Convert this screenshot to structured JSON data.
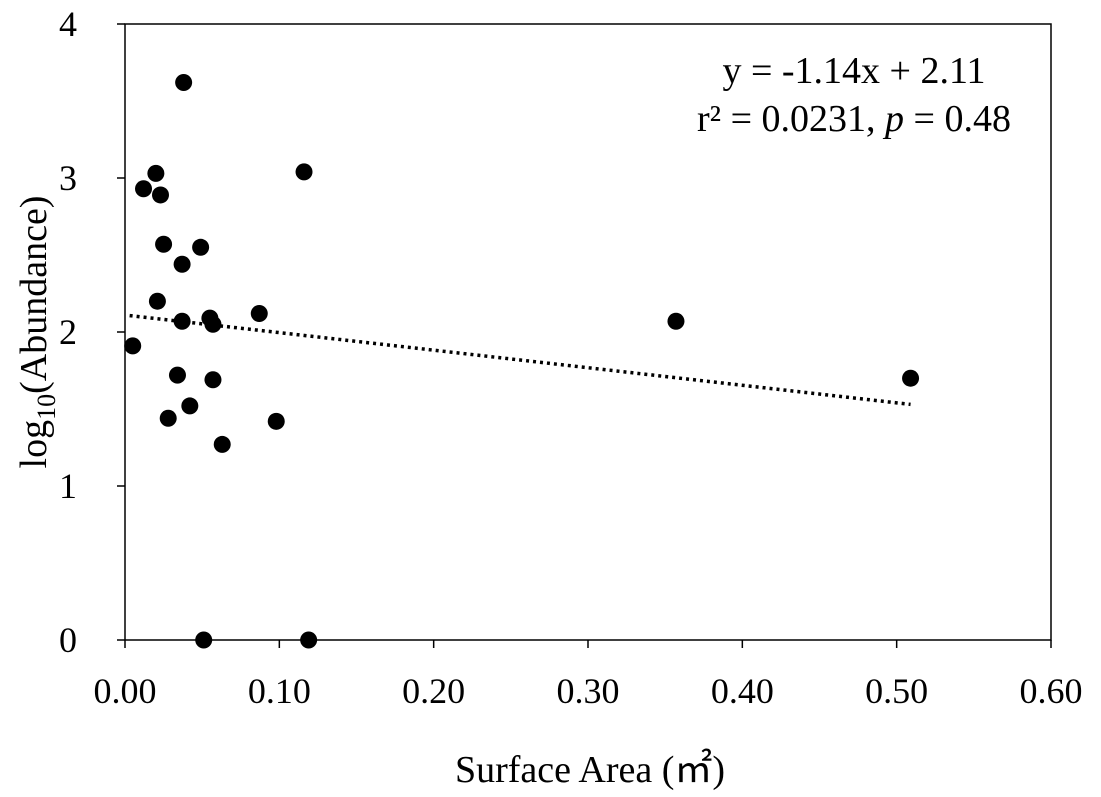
{
  "chart_data": {
    "type": "scatter",
    "title": "",
    "xlabel": "Surface Area (㎡)",
    "ylabel_main": "log",
    "ylabel_sub": "10",
    "ylabel_rest": "(Abundance)",
    "xlim": [
      0,
      0.6
    ],
    "ylim": [
      0,
      4
    ],
    "xticks": [
      "0.00",
      "0.10",
      "0.20",
      "0.30",
      "0.40",
      "0.50",
      "0.60"
    ],
    "xtick_values": [
      0,
      0.1,
      0.2,
      0.3,
      0.4,
      0.5,
      0.6
    ],
    "yticks": [
      "0",
      "1",
      "2",
      "3",
      "4"
    ],
    "ytick_values": [
      0,
      1,
      2,
      3,
      4
    ],
    "grid": false,
    "marker_color": "#000000",
    "points": [
      {
        "x": 0.005,
        "y": 1.91
      },
      {
        "x": 0.012,
        "y": 2.93
      },
      {
        "x": 0.02,
        "y": 3.03
      },
      {
        "x": 0.021,
        "y": 2.2
      },
      {
        "x": 0.023,
        "y": 2.89
      },
      {
        "x": 0.025,
        "y": 2.57
      },
      {
        "x": 0.028,
        "y": 1.44
      },
      {
        "x": 0.034,
        "y": 1.72
      },
      {
        "x": 0.037,
        "y": 2.07
      },
      {
        "x": 0.037,
        "y": 2.44
      },
      {
        "x": 0.038,
        "y": 3.62
      },
      {
        "x": 0.042,
        "y": 1.52
      },
      {
        "x": 0.049,
        "y": 2.55
      },
      {
        "x": 0.051,
        "y": 0.0
      },
      {
        "x": 0.055,
        "y": 2.09
      },
      {
        "x": 0.057,
        "y": 2.05
      },
      {
        "x": 0.057,
        "y": 1.69
      },
      {
        "x": 0.063,
        "y": 1.27
      },
      {
        "x": 0.087,
        "y": 2.12
      },
      {
        "x": 0.098,
        "y": 1.42
      },
      {
        "x": 0.116,
        "y": 3.04
      },
      {
        "x": 0.119,
        "y": 0.0
      },
      {
        "x": 0.357,
        "y": 2.07
      },
      {
        "x": 0.509,
        "y": 1.7
      }
    ],
    "trendline": {
      "style": "dotted",
      "slope": -1.14,
      "intercept": 2.11,
      "x_start": 0.003,
      "x_end": 0.509
    },
    "annotation": {
      "equation": "y = -1.14x + 2.11",
      "r2_text": "r² = 0.0231, ",
      "p_symbol": "p",
      "p_text": " = 0.48"
    }
  }
}
